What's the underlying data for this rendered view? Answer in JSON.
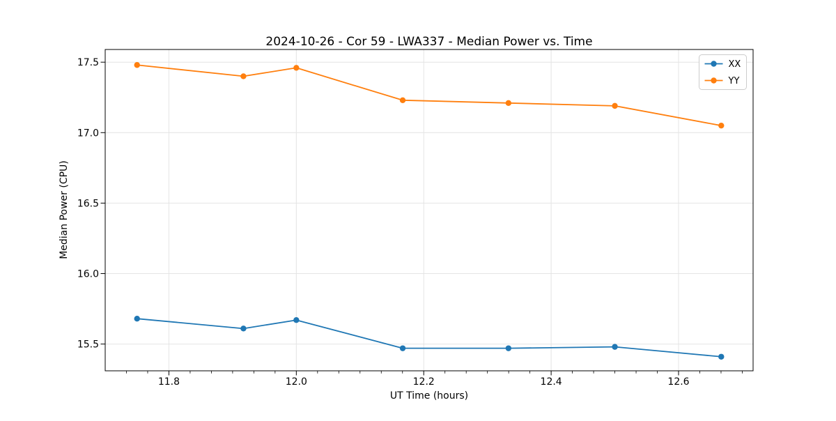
{
  "chart_data": {
    "type": "line",
    "title": "2024-10-26 - Cor 59 - LWA337 - Median Power vs. Time",
    "xlabel": "UT Time (hours)",
    "ylabel": "Median Power (CPU)",
    "x": [
      11.75,
      11.917,
      12.0,
      12.167,
      12.333,
      12.5,
      12.667
    ],
    "series": [
      {
        "name": "XX",
        "color": "#1f77b4",
        "values": [
          15.68,
          15.61,
          15.67,
          15.47,
          15.47,
          15.48,
          15.41
        ]
      },
      {
        "name": "YY",
        "color": "#ff7f0e",
        "values": [
          17.48,
          17.4,
          17.46,
          17.23,
          17.21,
          17.19,
          17.05
        ]
      }
    ],
    "xlim": [
      11.7,
      12.717
    ],
    "ylim": [
      15.31,
      17.59
    ],
    "xticks": [
      11.8,
      12.0,
      12.2,
      12.4,
      12.6
    ],
    "yticks": [
      15.5,
      16.0,
      16.5,
      17.0,
      17.5
    ],
    "x_minor_divisions": 6,
    "grid": true,
    "grid_color": "#e4e4e4",
    "axis_color": "#000000",
    "background": "#ffffff",
    "marker": "circle",
    "legend": {
      "position": "upper right",
      "labels": [
        "XX",
        "YY"
      ]
    }
  }
}
